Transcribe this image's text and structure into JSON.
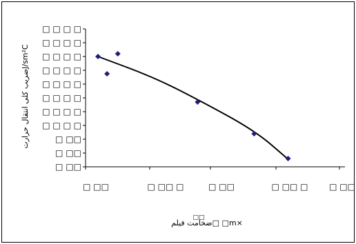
{
  "chart_data": {
    "type": "scatter",
    "title": "",
    "xlabel": "ضخامت فیلم□ □m×",
    "xlabel_superscript": "□□",
    "ylabel": "ضریب کلی انتقال حرارتJ/sm²C",
    "x_tick_labels": [
      "□ □□",
      "□ □□ □",
      "□ □□",
      "□ □□ □",
      "□ □□"
    ],
    "y_tick_labels": [
      "□ □ □ □",
      "□ □ □ □",
      "□ □ □ □",
      "□ □ □ □",
      "□ □ □ □",
      "□ □ □ □",
      "□ □ □ □",
      "□ □ □ □",
      "□ □□",
      "□ □□",
      "□ □□"
    ],
    "x_ticks_at": [
      0,
      100,
      200,
      300,
      400
    ],
    "y_ticks_at": [
      40,
      60,
      80,
      100,
      120,
      140,
      160,
      180,
      200,
      220,
      240
    ],
    "xlim": [
      0,
      400
    ],
    "ylim": [
      40,
      240
    ],
    "grid": false,
    "legend": "none",
    "marker": "diamond",
    "marker_color": "#1f1f7a",
    "trend_color": "#000000",
    "points": [
      {
        "x": 22,
        "y": 200
      },
      {
        "x": 38,
        "y": 175
      },
      {
        "x": 57,
        "y": 204
      },
      {
        "x": 198,
        "y": 134
      },
      {
        "x": 298,
        "y": 88
      },
      {
        "x": 358,
        "y": 52
      }
    ],
    "trendline": [
      {
        "x": 22,
        "y": 200
      },
      {
        "x": 120,
        "y": 170
      },
      {
        "x": 200,
        "y": 137
      },
      {
        "x": 300,
        "y": 92
      },
      {
        "x": 358,
        "y": 51
      }
    ]
  }
}
